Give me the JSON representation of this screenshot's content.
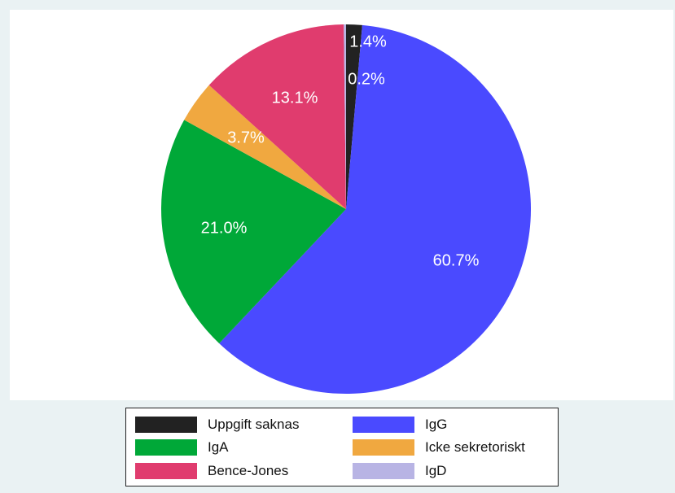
{
  "chart_data": {
    "type": "pie",
    "title": "",
    "slices": [
      {
        "name": "Uppgift saknas",
        "value": 1.4,
        "label": "1.4%",
        "color": "#222222"
      },
      {
        "name": "IgG",
        "value": 60.7,
        "label": "60.7%",
        "color": "#4a4aff"
      },
      {
        "name": "IgA",
        "value": 21.0,
        "label": "21.0%",
        "color": "#00a838"
      },
      {
        "name": "Icke sekretoriskt",
        "value": 3.7,
        "label": "3.7%",
        "color": "#f0a840"
      },
      {
        "name": "Bence-Jones",
        "value": 13.1,
        "label": "13.1%",
        "color": "#e03c6e"
      },
      {
        "name": "IgD",
        "value": 0.2,
        "label": "0.2%",
        "color": "#b8b4e4"
      }
    ],
    "legend_placement": "bottom",
    "legend_columns": 2
  }
}
